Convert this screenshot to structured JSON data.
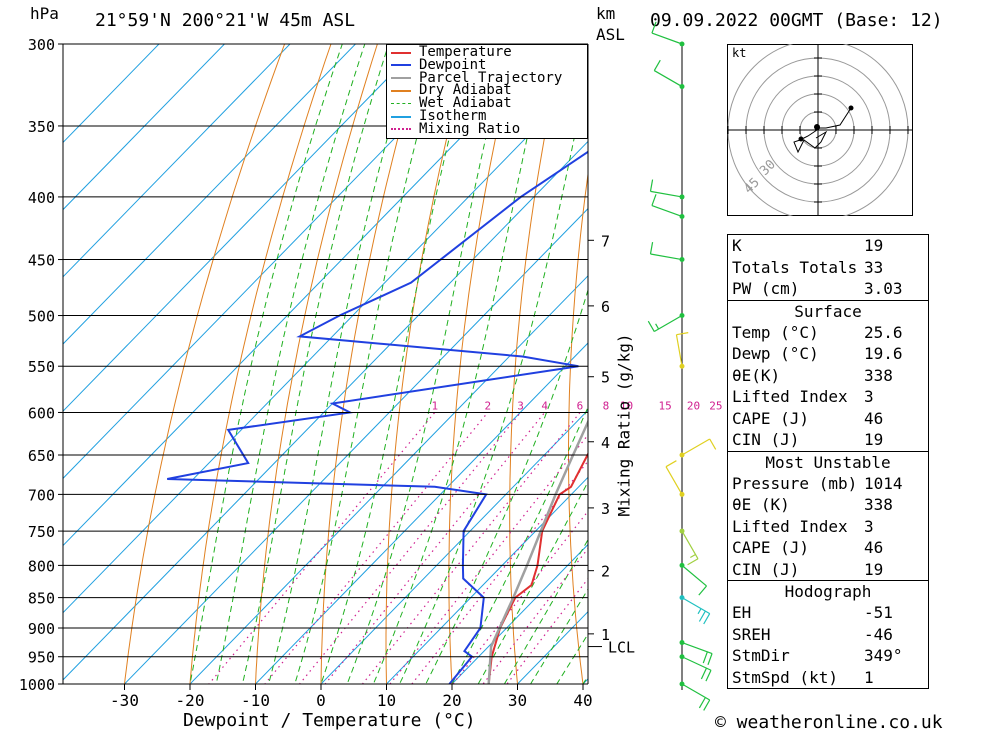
{
  "header": {
    "pressure_unit": "hPa",
    "location": "21°59'N  200°21'W  45m  ASL",
    "km_unit": "km",
    "asl": "ASL",
    "datetime": "09.09.2022  00GMT  (Base: 12)"
  },
  "footer": {
    "credit": "© weatheronline.co.uk"
  },
  "legend": [
    {
      "label": "Temperature",
      "color": "#e03030"
    },
    {
      "label": "Dewpoint",
      "color": "#2040e0"
    },
    {
      "label": "Parcel Trajectory",
      "color": "#a0a0a0"
    },
    {
      "label": "Dry Adiabat",
      "color": "#e08020"
    },
    {
      "label": "Wet Adiabat",
      "color": "#20b020"
    },
    {
      "label": "Isotherm",
      "color": "#20a0e0"
    },
    {
      "label": "Mixing Ratio",
      "color": "#d02090"
    }
  ],
  "hodograph": {
    "unit_label": "kt",
    "ring_labels": [
      "30",
      "45"
    ]
  },
  "indices": {
    "top": [
      {
        "label": "K",
        "value": "19"
      },
      {
        "label": "Totals Totals",
        "value": "33"
      },
      {
        "label": "PW (cm)",
        "value": "3.03"
      }
    ],
    "surface": {
      "title": "Surface",
      "rows": [
        {
          "label": "Temp (°C)",
          "value": "25.6"
        },
        {
          "label": "Dewp (°C)",
          "value": "19.6"
        },
        {
          "label": "θE(K)",
          "value": "338"
        },
        {
          "label": "Lifted Index",
          "value": "3"
        },
        {
          "label": "CAPE (J)",
          "value": "46"
        },
        {
          "label": "CIN (J)",
          "value": "19"
        }
      ]
    },
    "most_unstable": {
      "title": "Most Unstable",
      "rows": [
        {
          "label": "Pressure (mb)",
          "value": "1014"
        },
        {
          "label": "θE (K)",
          "value": "338"
        },
        {
          "label": "Lifted Index",
          "value": "3"
        },
        {
          "label": "CAPE (J)",
          "value": "46"
        },
        {
          "label": "CIN (J)",
          "value": "19"
        }
      ]
    },
    "hodograph": {
      "title": "Hodograph",
      "rows": [
        {
          "label": "EH",
          "value": "-51"
        },
        {
          "label": "SREH",
          "value": "-46"
        },
        {
          "label": "StmDir",
          "value": "349°"
        },
        {
          "label": "StmSpd (kt)",
          "value": "1"
        }
      ]
    }
  },
  "chart_data": {
    "type": "line",
    "title": "Skew-T log-P diagram",
    "xlabel": "Dewpoint / Temperature (°C)",
    "ylabel": "hPa",
    "y2label": "Mixing Ratio (g/kg)",
    "x_ticks": [
      -30,
      -20,
      -10,
      0,
      10,
      20,
      30,
      40
    ],
    "pressure_levels": [
      300,
      350,
      400,
      450,
      500,
      550,
      600,
      650,
      700,
      750,
      800,
      850,
      900,
      950,
      1000
    ],
    "km_ticks": [
      {
        "label": "7",
        "p": 434
      },
      {
        "label": "6",
        "p": 491
      },
      {
        "label": "5",
        "p": 561
      },
      {
        "label": "4",
        "p": 634
      },
      {
        "label": "3",
        "p": 718
      },
      {
        "label": "2",
        "p": 808
      },
      {
        "label": "1",
        "p": 910
      }
    ],
    "lcl": {
      "label": "LCL",
      "p": 932
    },
    "mixing_ratio_labels": [
      "1",
      "2",
      "3",
      "4",
      "6",
      "8",
      "10",
      "15",
      "20",
      "25"
    ],
    "series": [
      {
        "name": "Temperature",
        "color": "#e03030",
        "points": [
          [
            1000,
            25.6
          ],
          [
            950,
            22.0
          ],
          [
            900,
            19.0
          ],
          [
            850,
            16.8
          ],
          [
            830,
            17.4
          ],
          [
            800,
            15.4
          ],
          [
            750,
            11.0
          ],
          [
            700,
            8.2
          ],
          [
            690,
            8.8
          ],
          [
            650,
            6.6
          ],
          [
            600,
            4.0
          ],
          [
            550,
            -0.2
          ],
          [
            530,
            1.0
          ],
          [
            500,
            -1.8
          ],
          [
            450,
            -7.5
          ],
          [
            400,
            -14.5
          ],
          [
            350,
            -22.0
          ],
          [
            300,
            -31.0
          ]
        ]
      },
      {
        "name": "Dewpoint",
        "color": "#2040e0",
        "points": [
          [
            1000,
            19.6
          ],
          [
            950,
            19.0
          ],
          [
            940,
            17.0
          ],
          [
            900,
            16.0
          ],
          [
            850,
            12.0
          ],
          [
            840,
            10.0
          ],
          [
            820,
            6.0
          ],
          [
            800,
            4.0
          ],
          [
            750,
            -1.0
          ],
          [
            700,
            -3.0
          ],
          [
            690,
            -12.0
          ],
          [
            680,
            -54.0
          ],
          [
            660,
            -44.0
          ],
          [
            620,
            -52.0
          ],
          [
            600,
            -36.0
          ],
          [
            590,
            -40.0
          ],
          [
            550,
            -8.0
          ],
          [
            540,
            -18.0
          ],
          [
            520,
            -55.0
          ],
          [
            500,
            -52.0
          ],
          [
            470,
            -46.0
          ],
          [
            400,
            -42.0
          ],
          [
            300,
            -30.0
          ]
        ]
      },
      {
        "name": "Parcel Trajectory",
        "color": "#a0a0a0",
        "points": [
          [
            1000,
            25.6
          ],
          [
            932,
            20.4
          ],
          [
            850,
            16.5
          ],
          [
            800,
            13.8
          ],
          [
            750,
            10.8
          ],
          [
            700,
            7.6
          ],
          [
            650,
            4.4
          ],
          [
            600,
            1.0
          ],
          [
            550,
            -3.0
          ],
          [
            500,
            -7.5
          ],
          [
            450,
            -12.8
          ],
          [
            400,
            -19.0
          ],
          [
            350,
            -26.5
          ],
          [
            300,
            -35.5
          ]
        ]
      }
    ],
    "winds": [
      {
        "p": 1000,
        "dir": 120,
        "spd": 20
      },
      {
        "p": 950,
        "dir": 115,
        "spd": 20
      },
      {
        "p": 925,
        "dir": 110,
        "spd": 20
      },
      {
        "p": 850,
        "dir": 120,
        "spd": 15
      },
      {
        "p": 800,
        "dir": 130,
        "spd": 10
      },
      {
        "p": 750,
        "dir": 150,
        "spd": 5
      },
      {
        "p": 700,
        "dir": 330,
        "spd": 10
      },
      {
        "p": 650,
        "dir": 60,
        "spd": 10
      },
      {
        "p": 550,
        "dir": 350,
        "spd": 10
      },
      {
        "p": 500,
        "dir": 240,
        "spd": 5
      },
      {
        "p": 450,
        "dir": 280,
        "spd": 10
      },
      {
        "p": 415,
        "dir": 290,
        "spd": 10
      },
      {
        "p": 400,
        "dir": 280,
        "spd": 10
      },
      {
        "p": 325,
        "dir": 300,
        "spd": 10
      },
      {
        "p": 300,
        "dir": 290,
        "spd": 10
      }
    ]
  }
}
